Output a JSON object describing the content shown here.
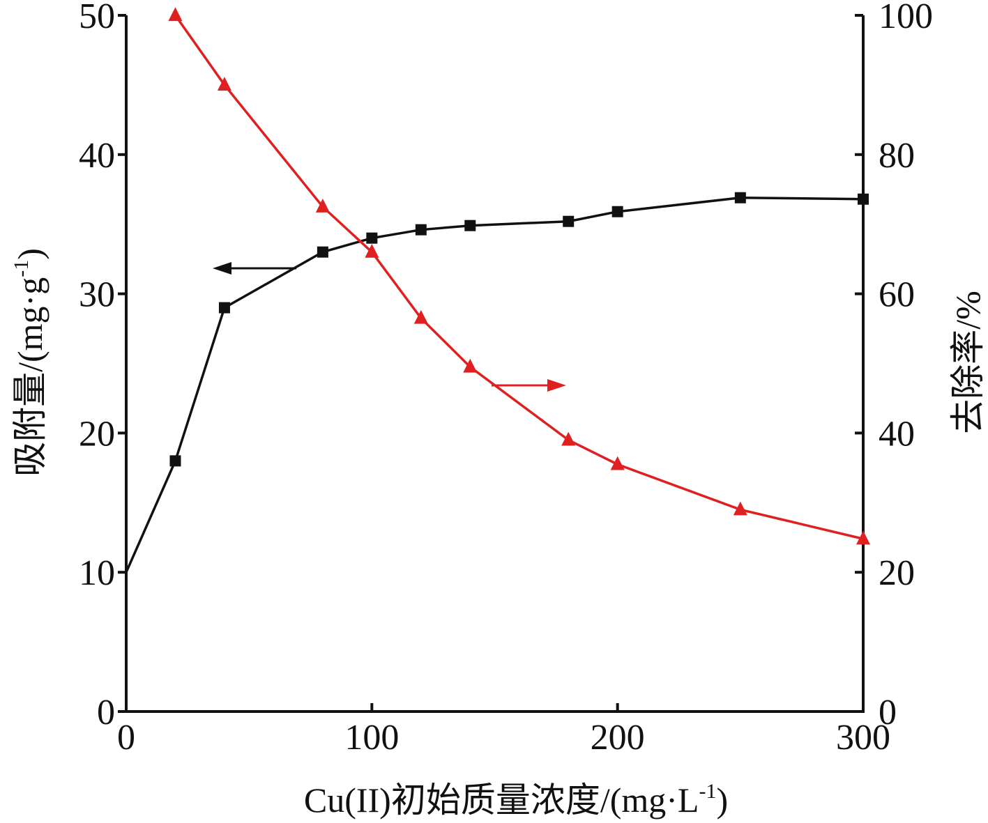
{
  "chart_data": {
    "type": "line",
    "title": "",
    "xlabel": "Cu(II)初始质量浓度/(mg·L",
    "xlabel_sup": "-1",
    "xlabel_close": ")",
    "ylabel_left": "吸附量/(mg·g",
    "ylabel_left_sup": "-1",
    "ylabel_left_close": ")",
    "ylabel_right": "去除率/%",
    "xlim": [
      0,
      300
    ],
    "ylim_left": [
      0,
      50
    ],
    "ylim_right": [
      0,
      100
    ],
    "x_ticks": [
      "0",
      "100",
      "200",
      "300"
    ],
    "y_left_ticks": [
      "0",
      "10",
      "20",
      "30",
      "40",
      "50"
    ],
    "y_right_ticks": [
      "0",
      "20",
      "40",
      "60",
      "80",
      "100"
    ],
    "grid": false,
    "series": [
      {
        "axis": "left",
        "marker": "square",
        "color": "#111111",
        "x": [
          0,
          20,
          40,
          80,
          100,
          120,
          140,
          180,
          200,
          250,
          300
        ],
        "values": [
          10,
          18,
          29,
          33,
          34,
          34.6,
          34.9,
          35.2,
          35.9,
          36.9,
          36.8
        ]
      },
      {
        "axis": "right",
        "marker": "triangle",
        "color": "#e02020",
        "x": [
          20,
          40,
          80,
          100,
          120,
          140,
          180,
          200,
          250,
          300
        ],
        "values": [
          100,
          90,
          72.5,
          66,
          56.5,
          49.5,
          39,
          35.5,
          29,
          24.8
        ]
      }
    ],
    "annotations": [
      {
        "type": "arrow",
        "direction": "left",
        "color": "#111111",
        "series": 0
      },
      {
        "type": "arrow",
        "direction": "right",
        "color": "#e02020",
        "series": 1
      }
    ]
  }
}
